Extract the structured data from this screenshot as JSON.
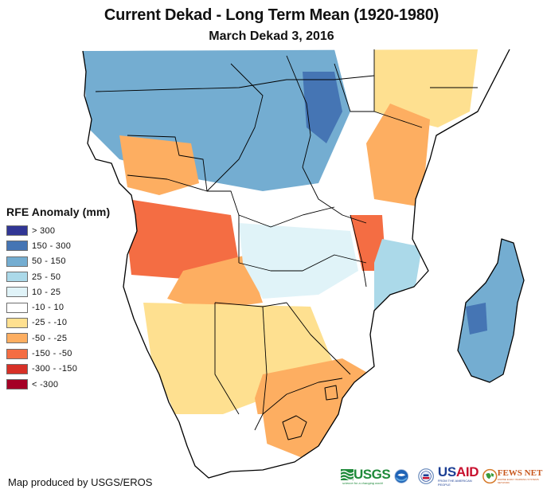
{
  "header": {
    "title": "Current Dekad - Long Term Mean (1920-1980)",
    "subtitle": "March Dekad 3, 2016"
  },
  "legend": {
    "title": "RFE Anomaly (mm)",
    "items": [
      {
        "label": "> 300",
        "color": "#313695"
      },
      {
        "label": "150 - 300",
        "color": "#4575b4"
      },
      {
        "label": "50 - 150",
        "color": "#74add1"
      },
      {
        "label": "25 - 50",
        "color": "#abd9e9"
      },
      {
        "label": "10 - 25",
        "color": "#e0f3f8"
      },
      {
        "label": "-10 - 10",
        "color": "#ffffff"
      },
      {
        "label": "-25 - -10",
        "color": "#fee090"
      },
      {
        "label": "-50 - -25",
        "color": "#fdae61"
      },
      {
        "label": "-150 - -50",
        "color": "#f46d43"
      },
      {
        "label": "-300 - -150",
        "color": "#d73027"
      },
      {
        "label": "< -300",
        "color": "#a50026"
      }
    ]
  },
  "footer": {
    "credit": "Map produced by USGS/EROS",
    "logos": {
      "usgs": "USGS",
      "usgs_tagline": "science for a changing world",
      "noaa": "NOAA",
      "usaid_us": "US",
      "usaid_aid": "AID",
      "usaid_tagline": "FROM THE AMERICAN PEOPLE",
      "fews": "FEWS NET",
      "fews_tagline": "FAMINE EARLY WARNING SYSTEMS NETWORK"
    }
  },
  "map": {
    "region": "Central, Eastern and Southern Africa with Madagascar",
    "anomaly_zones": [
      {
        "name": "central-africa-north",
        "class": "50 - 150"
      },
      {
        "name": "drc-east",
        "class": "150 - 300"
      },
      {
        "name": "gabon-congo",
        "class": "-50 - -25"
      },
      {
        "name": "kenya-east",
        "class": "-25 - -10"
      },
      {
        "name": "kenya-tanzania-coast",
        "class": "-50 - -25"
      },
      {
        "name": "angola-west",
        "class": "-150 - -50"
      },
      {
        "name": "angola-south",
        "class": "-50 - -25"
      },
      {
        "name": "zambia",
        "class": "10 - 25"
      },
      {
        "name": "malawi",
        "class": "-150 - -50"
      },
      {
        "name": "mozambique-north",
        "class": "25 - 50"
      },
      {
        "name": "namibia-botswana",
        "class": "-25 - -10"
      },
      {
        "name": "south-africa-east",
        "class": "-50 - -25"
      },
      {
        "name": "south-africa-west",
        "class": "-10 - 10"
      },
      {
        "name": "madagascar",
        "class": "50 - 150"
      },
      {
        "name": "madagascar-core",
        "class": "150 - 300"
      }
    ]
  }
}
